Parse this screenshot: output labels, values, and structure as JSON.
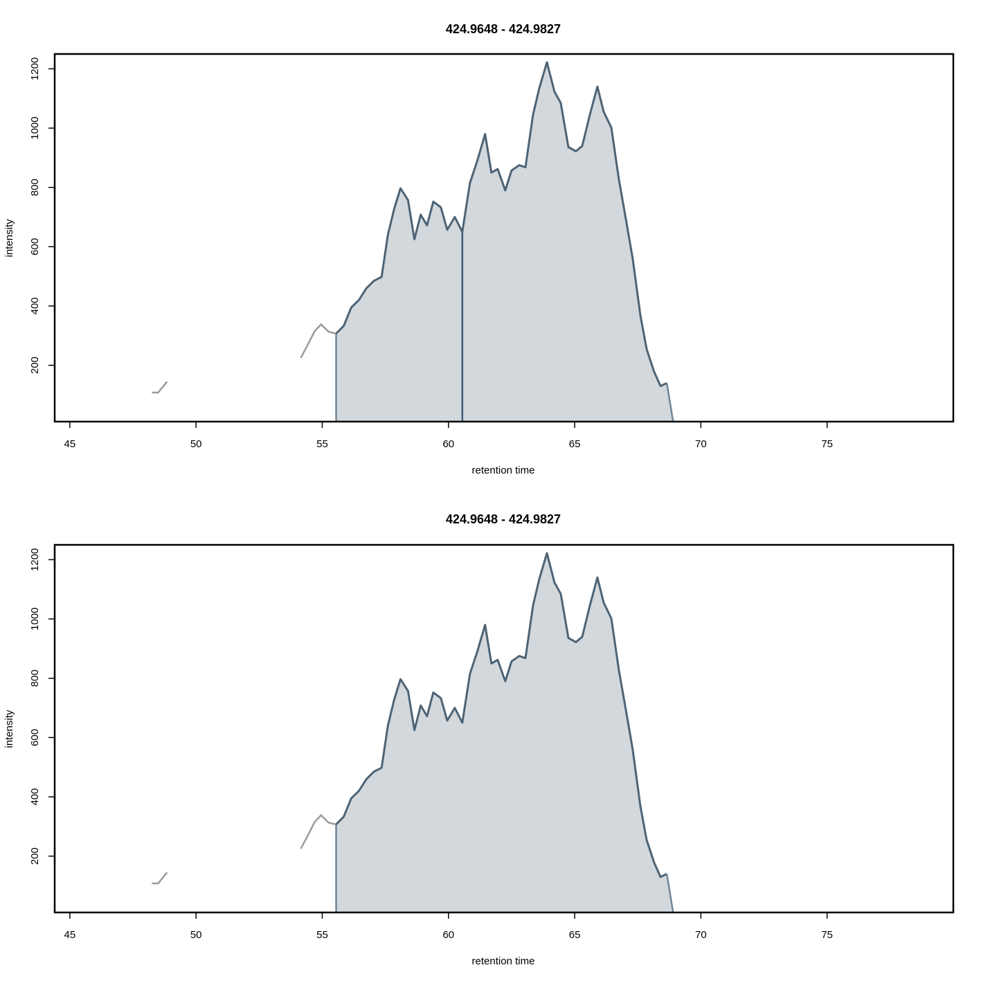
{
  "colors": {
    "line": "#4d6375",
    "fill": "#d3d8dd",
    "outside": "#9b9b9b",
    "edge": "#6f8597",
    "divider": "#3e5a75"
  },
  "chart_data": [
    {
      "type": "area",
      "title": "424.9648 - 424.9827",
      "xlabel": "retention time",
      "ylabel": "intensity",
      "xlim": [
        44.4,
        80.0
      ],
      "ylim": [
        10,
        1250
      ],
      "xticks": [
        45,
        50,
        55,
        60,
        65,
        70,
        75
      ],
      "yticks": [
        200,
        400,
        600,
        800,
        1000,
        1200
      ],
      "grid": false,
      "outside_segments": [
        [
          [
            48.25,
            108
          ],
          [
            48.5,
            108
          ],
          [
            48.85,
            145
          ]
        ],
        [
          [
            54.15,
            225
          ],
          [
            54.4,
            265
          ],
          [
            54.7,
            315
          ],
          [
            54.95,
            338
          ],
          [
            55.25,
            313
          ],
          [
            55.55,
            307
          ]
        ]
      ],
      "peak": [
        [
          55.55,
          307
        ],
        [
          55.85,
          333
        ],
        [
          56.15,
          395
        ],
        [
          56.45,
          420
        ],
        [
          56.75,
          460
        ],
        [
          57.05,
          485
        ],
        [
          57.35,
          498
        ],
        [
          57.6,
          640
        ],
        [
          57.85,
          728
        ],
        [
          58.1,
          797
        ],
        [
          58.4,
          757
        ],
        [
          58.65,
          625
        ],
        [
          58.9,
          708
        ],
        [
          59.15,
          672
        ],
        [
          59.4,
          752
        ],
        [
          59.7,
          733
        ],
        [
          59.95,
          657
        ],
        [
          60.25,
          700
        ],
        [
          60.55,
          650
        ],
        [
          60.85,
          815
        ],
        [
          61.15,
          892
        ],
        [
          61.45,
          980
        ],
        [
          61.7,
          850
        ],
        [
          61.95,
          862
        ],
        [
          62.25,
          790
        ],
        [
          62.5,
          857
        ],
        [
          62.8,
          875
        ],
        [
          63.05,
          868
        ],
        [
          63.35,
          1045
        ],
        [
          63.6,
          1135
        ],
        [
          63.9,
          1222
        ],
        [
          64.2,
          1123
        ],
        [
          64.45,
          1085
        ],
        [
          64.75,
          936
        ],
        [
          65.05,
          922
        ],
        [
          65.3,
          940
        ],
        [
          65.6,
          1045
        ],
        [
          65.9,
          1140
        ],
        [
          66.15,
          1055
        ],
        [
          66.45,
          1002
        ],
        [
          66.75,
          828
        ],
        [
          67.05,
          683
        ],
        [
          67.3,
          560
        ],
        [
          67.6,
          370
        ],
        [
          67.85,
          255
        ],
        [
          68.15,
          178
        ],
        [
          68.4,
          130
        ],
        [
          68.65,
          140
        ],
        [
          68.9,
          10
        ]
      ],
      "dividers": [
        55.55,
        60.55
      ]
    },
    {
      "type": "area",
      "title": "424.9648 - 424.9827",
      "xlabel": "retention time",
      "ylabel": "intensity",
      "xlim": [
        44.4,
        80.0
      ],
      "ylim": [
        10,
        1250
      ],
      "xticks": [
        45,
        50,
        55,
        60,
        65,
        70,
        75
      ],
      "yticks": [
        200,
        400,
        600,
        800,
        1000,
        1200
      ],
      "grid": false,
      "outside_segments": [
        [
          [
            48.25,
            108
          ],
          [
            48.5,
            108
          ],
          [
            48.85,
            145
          ]
        ],
        [
          [
            54.15,
            225
          ],
          [
            54.4,
            265
          ],
          [
            54.7,
            315
          ],
          [
            54.95,
            338
          ],
          [
            55.25,
            313
          ],
          [
            55.55,
            307
          ]
        ]
      ],
      "peak": [
        [
          55.55,
          307
        ],
        [
          55.85,
          333
        ],
        [
          56.15,
          395
        ],
        [
          56.45,
          420
        ],
        [
          56.75,
          460
        ],
        [
          57.05,
          485
        ],
        [
          57.35,
          498
        ],
        [
          57.6,
          640
        ],
        [
          57.85,
          728
        ],
        [
          58.1,
          797
        ],
        [
          58.4,
          757
        ],
        [
          58.65,
          625
        ],
        [
          58.9,
          708
        ],
        [
          59.15,
          672
        ],
        [
          59.4,
          752
        ],
        [
          59.7,
          733
        ],
        [
          59.95,
          657
        ],
        [
          60.25,
          700
        ],
        [
          60.55,
          650
        ],
        [
          60.85,
          815
        ],
        [
          61.15,
          892
        ],
        [
          61.45,
          980
        ],
        [
          61.7,
          850
        ],
        [
          61.95,
          862
        ],
        [
          62.25,
          790
        ],
        [
          62.5,
          857
        ],
        [
          62.8,
          875
        ],
        [
          63.05,
          868
        ],
        [
          63.35,
          1045
        ],
        [
          63.6,
          1135
        ],
        [
          63.9,
          1222
        ],
        [
          64.2,
          1123
        ],
        [
          64.45,
          1085
        ],
        [
          64.75,
          936
        ],
        [
          65.05,
          922
        ],
        [
          65.3,
          940
        ],
        [
          65.6,
          1045
        ],
        [
          65.9,
          1140
        ],
        [
          66.15,
          1055
        ],
        [
          66.45,
          1002
        ],
        [
          66.75,
          828
        ],
        [
          67.05,
          683
        ],
        [
          67.3,
          560
        ],
        [
          67.6,
          370
        ],
        [
          67.85,
          255
        ],
        [
          68.15,
          178
        ],
        [
          68.4,
          130
        ],
        [
          68.65,
          140
        ],
        [
          68.9,
          10
        ]
      ],
      "dividers": [
        55.55
      ]
    }
  ]
}
